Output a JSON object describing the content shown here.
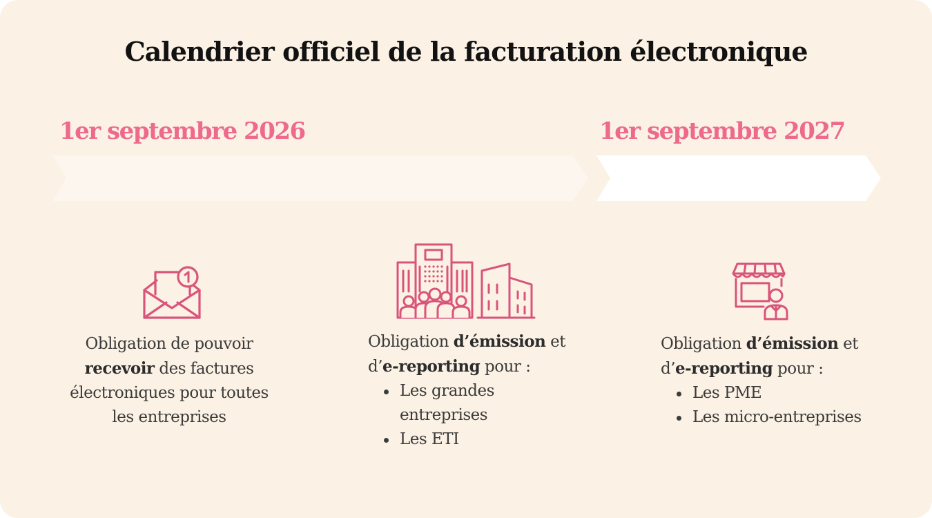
{
  "title": "Calendrier officiel de la facturation électronique",
  "timeline": [
    {
      "date": "1er septembre 2026"
    },
    {
      "date": "1er septembre 2027"
    }
  ],
  "columns": [
    {
      "icon": "mail-notification-icon",
      "text_1": "Obligation de pouvoir ",
      "bold_1": "recevoir",
      "text_2": " des factures électroniques pour toutes les entreprises"
    },
    {
      "icon": "buildings-group-icon",
      "text_1": "Obligation ",
      "bold_1": "d’émission",
      "text_2": " et d’",
      "bold_2": "e-reporting",
      "text_3": " pour :",
      "items": [
        "Les grandes entreprises",
        "Les ETI"
      ]
    },
    {
      "icon": "shop-owner-icon",
      "text_1": "Obligation ",
      "bold_1": "d’émission",
      "text_2": " et d’",
      "bold_2": "e-reporting",
      "text_3": " pour :",
      "items": [
        "Les PME",
        "Les micro-entreprises"
      ]
    }
  ],
  "colors": {
    "background": "#fbf1e4",
    "accent": "#ee6a8d",
    "icon": "#d9547a",
    "arrow_1": "#fdf6ee",
    "arrow_2": "#ffffff",
    "text": "#3b3b3b"
  }
}
